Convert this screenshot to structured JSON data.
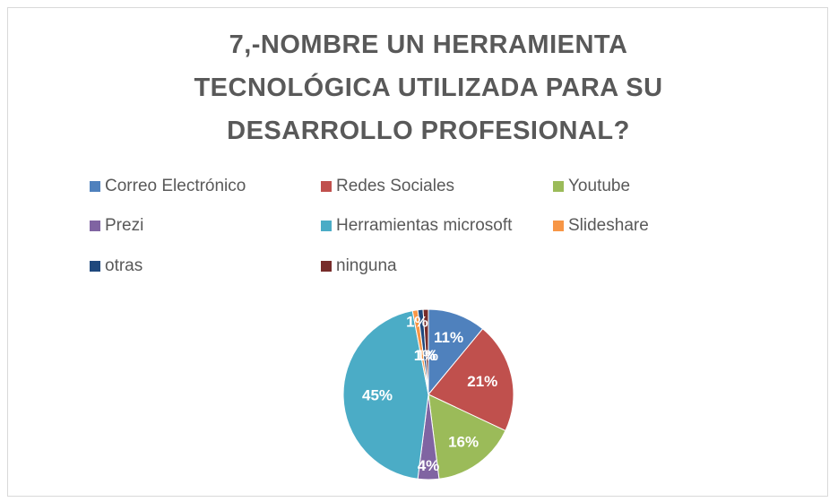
{
  "chart_data": {
    "type": "pie",
    "title": "7,-NOMBRE UN HERRAMIENTA TECNOLÓGICA UTILIZADA PARA SU DESARROLLO PROFESIONAL?",
    "categories": [
      "Correo Electrónico",
      "Redes Sociales",
      "Youtube",
      "Prezi",
      "Herramientas microsoft",
      "Slideshare",
      "otras",
      "ninguna"
    ],
    "values": [
      11,
      21,
      16,
      4,
      45,
      1,
      1,
      1
    ],
    "value_labels": [
      "11%",
      "21%",
      "16%",
      "4%",
      "45%",
      "1%",
      "1%",
      "1%"
    ],
    "colors": [
      "#4f81bd",
      "#c0504d",
      "#9bbb59",
      "#8064a2",
      "#4bacc6",
      "#f79646",
      "#1f497d",
      "#772c2a"
    ],
    "legend": "top"
  }
}
